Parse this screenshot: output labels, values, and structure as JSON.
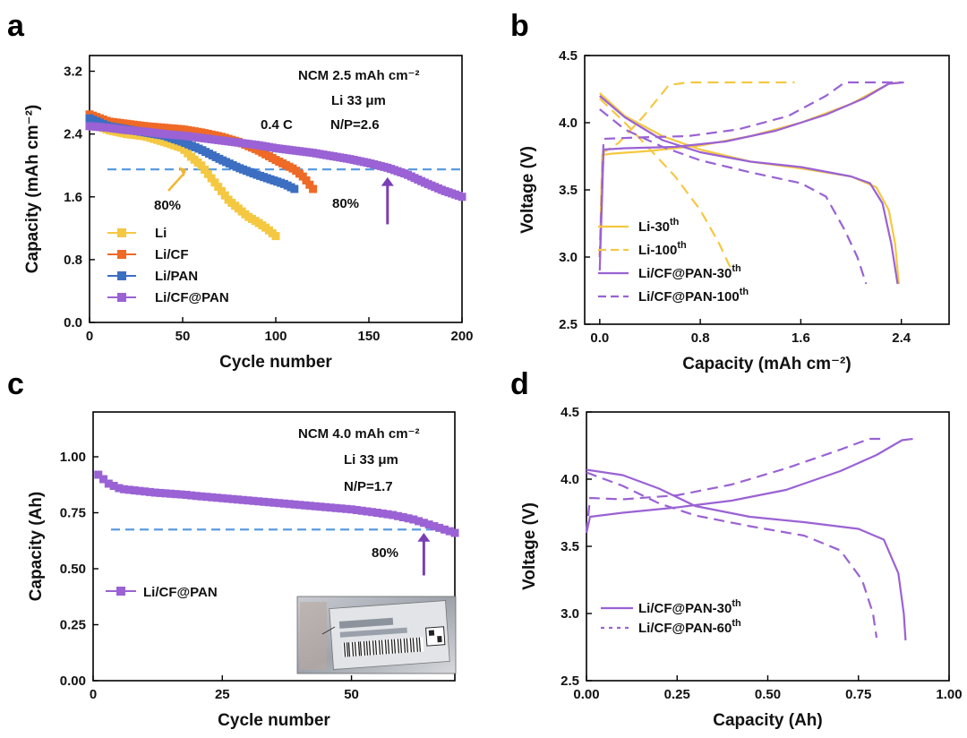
{
  "panels": {
    "a": "a",
    "b": "b",
    "c": "c",
    "d": "d"
  },
  "colors": {
    "li": "#F5C842",
    "li_cf": "#EE6A26",
    "li_pan": "#3C6FC2",
    "li_cf_pan": "#9A62D4",
    "ref_dash": "#5B9BE0",
    "arrow": "#7A3FB5",
    "orange_arrow": "#F2B532"
  },
  "icons": {
    "pouch_cell": "pouch-cell-photo-icon"
  },
  "chart_data": [
    {
      "id": "a",
      "type": "scatter",
      "xlabel": "Cycle number",
      "ylabel": "Capacity (mAh cm⁻²)",
      "xlim": [
        0,
        200
      ],
      "ylim": [
        0,
        3.4
      ],
      "xticks": [
        0,
        50,
        100,
        150,
        200
      ],
      "yticks": [
        0.0,
        0.8,
        1.6,
        2.4,
        3.2
      ],
      "xtick_labels": [
        "0",
        "50",
        "100",
        "150",
        "200"
      ],
      "ytick_labels": [
        "0.0",
        "0.8",
        "1.6",
        "2.4",
        "3.2"
      ],
      "annotations": [
        "NCM 2.5 mAh cm⁻²",
        "Li 33 μm",
        "N/P=2.6",
        "0.4 C",
        "80%",
        "80%"
      ],
      "reference_line": {
        "y": 1.95,
        "x": [
          0,
          200
        ]
      },
      "arrows": [
        {
          "x": 160,
          "y_from": 1.25,
          "y_to": 1.85
        },
        {
          "x": 52,
          "y_from": 1.75,
          "y_to": 1.95
        }
      ],
      "legend": [
        "Li",
        "Li/CF",
        "Li/PAN",
        "Li/CF@PAN"
      ],
      "series": [
        {
          "name": "Li",
          "color": "#F5C842",
          "x": [
            0,
            10,
            20,
            30,
            40,
            50,
            55,
            60,
            65,
            70,
            75,
            80,
            85,
            90,
            95,
            100
          ],
          "y": [
            2.55,
            2.45,
            2.4,
            2.37,
            2.3,
            2.22,
            2.1,
            2.0,
            1.85,
            1.7,
            1.55,
            1.45,
            1.35,
            1.28,
            1.2,
            1.1
          ]
        },
        {
          "name": "Li/CF",
          "color": "#EE6A26",
          "x": [
            0,
            10,
            20,
            30,
            40,
            50,
            60,
            70,
            80,
            90,
            100,
            110,
            115,
            120
          ],
          "y": [
            2.65,
            2.56,
            2.53,
            2.5,
            2.48,
            2.46,
            2.42,
            2.37,
            2.3,
            2.2,
            2.07,
            1.95,
            1.85,
            1.7
          ]
        },
        {
          "name": "Li/PAN",
          "color": "#3C6FC2",
          "x": [
            0,
            10,
            20,
            30,
            40,
            50,
            60,
            70,
            80,
            90,
            100,
            105,
            110
          ],
          "y": [
            2.6,
            2.5,
            2.46,
            2.42,
            2.38,
            2.3,
            2.2,
            2.08,
            1.97,
            1.88,
            1.8,
            1.76,
            1.7
          ]
        },
        {
          "name": "Li/CF@PAN",
          "color": "#9A62D4",
          "x": [
            0,
            10,
            20,
            30,
            40,
            50,
            60,
            70,
            80,
            90,
            100,
            110,
            120,
            130,
            140,
            150,
            160,
            170,
            180,
            190,
            200
          ],
          "y": [
            2.5,
            2.48,
            2.45,
            2.43,
            2.4,
            2.38,
            2.35,
            2.32,
            2.29,
            2.26,
            2.22,
            2.19,
            2.16,
            2.12,
            2.08,
            2.03,
            1.97,
            1.89,
            1.78,
            1.68,
            1.6
          ]
        }
      ]
    },
    {
      "id": "b",
      "type": "line",
      "xlabel": "Capacity (mAh cm⁻²)",
      "ylabel": "Voltage (V)",
      "xlim": [
        -0.12,
        2.78
      ],
      "ylim": [
        2.5,
        4.5
      ],
      "xticks": [
        0.0,
        0.8,
        1.6,
        2.4
      ],
      "yticks": [
        2.5,
        3.0,
        3.5,
        4.0,
        4.5
      ],
      "xtick_labels": [
        "0.0",
        "0.8",
        "1.6",
        "2.4"
      ],
      "ytick_labels": [
        "2.5",
        "3.0",
        "3.5",
        "4.0",
        "4.5"
      ],
      "legend": [
        "Li-30th",
        "Li-100th",
        "Li/CF@PAN-30th",
        "Li/CF@PAN-100th"
      ],
      "series": [
        {
          "name": "Li-30th (charge)",
          "color": "#F5C842",
          "dash": false,
          "x": [
            0.0,
            0.02,
            0.1,
            0.4,
            0.8,
            1.2,
            1.6,
            2.0,
            2.3,
            2.4
          ],
          "y": [
            3.0,
            3.76,
            3.77,
            3.79,
            3.83,
            3.9,
            4.0,
            4.14,
            4.29,
            4.3
          ]
        },
        {
          "name": "Li-30th (discharge)",
          "color": "#F5C842",
          "dash": false,
          "x": [
            0.0,
            0.2,
            0.5,
            0.8,
            1.2,
            1.6,
            2.0,
            2.2,
            2.3,
            2.35,
            2.38
          ],
          "y": [
            4.22,
            4.05,
            3.9,
            3.8,
            3.71,
            3.66,
            3.6,
            3.52,
            3.35,
            3.1,
            2.8
          ]
        },
        {
          "name": "Li-100th (charge)",
          "color": "#F5C842",
          "dash": true,
          "x": [
            0.0,
            0.03,
            0.15,
            0.35,
            0.55,
            0.7,
            1.2,
            1.55
          ],
          "y": [
            3.0,
            3.78,
            3.85,
            4.05,
            4.28,
            4.3,
            4.3,
            4.3
          ]
        },
        {
          "name": "Li-100th (discharge)",
          "color": "#F5C842",
          "dash": true,
          "x": [
            0.0,
            0.2,
            0.4,
            0.6,
            0.8,
            0.95,
            1.05
          ],
          "y": [
            4.18,
            4.0,
            3.8,
            3.6,
            3.35,
            3.1,
            2.9
          ]
        },
        {
          "name": "Li/CF@PAN-30th (charge)",
          "color": "#9A62D4",
          "dash": false,
          "x": [
            0.0,
            0.03,
            0.2,
            0.6,
            1.0,
            1.4,
            1.8,
            2.1,
            2.3,
            2.42
          ],
          "y": [
            2.9,
            3.8,
            3.81,
            3.82,
            3.86,
            3.94,
            4.06,
            4.18,
            4.29,
            4.3
          ]
        },
        {
          "name": "Li/CF@PAN-30th (discharge)",
          "color": "#9A62D4",
          "dash": false,
          "x": [
            0.0,
            0.2,
            0.5,
            0.8,
            1.2,
            1.6,
            2.0,
            2.15,
            2.25,
            2.32,
            2.37
          ],
          "y": [
            4.2,
            4.04,
            3.87,
            3.78,
            3.71,
            3.67,
            3.6,
            3.55,
            3.4,
            3.1,
            2.8
          ]
        },
        {
          "name": "Li/CF@PAN-100th (charge)",
          "color": "#9A62D4",
          "dash": true,
          "x": [
            0.0,
            0.03,
            0.3,
            0.7,
            1.1,
            1.5,
            1.8,
            1.95,
            2.2,
            2.4
          ],
          "y": [
            3.0,
            3.88,
            3.89,
            3.9,
            3.95,
            4.05,
            4.2,
            4.3,
            4.3,
            4.3
          ]
        },
        {
          "name": "Li/CF@PAN-100th (discharge)",
          "color": "#9A62D4",
          "dash": true,
          "x": [
            0.0,
            0.2,
            0.5,
            0.8,
            1.2,
            1.6,
            1.8,
            1.95,
            2.05,
            2.12
          ],
          "y": [
            4.1,
            3.95,
            3.82,
            3.72,
            3.63,
            3.55,
            3.45,
            3.2,
            3.0,
            2.8
          ]
        }
      ]
    },
    {
      "id": "c",
      "type": "scatter",
      "xlabel": "Cycle number",
      "ylabel": "Capacity (Ah)",
      "xlim": [
        0,
        70
      ],
      "ylim": [
        0,
        1.2
      ],
      "xticks": [
        0,
        25,
        50
      ],
      "yticks": [
        0.0,
        0.25,
        0.5,
        0.75,
        1.0
      ],
      "xtick_labels": [
        "0",
        "25",
        "50"
      ],
      "ytick_labels": [
        "0.00",
        "0.25",
        "0.50",
        "0.75",
        "1.00"
      ],
      "annotations": [
        "NCM 4.0 mAh cm⁻²",
        "Li 33 μm",
        "N/P=1.7",
        "80%"
      ],
      "reference_line": {
        "y": 0.675,
        "x": [
          0,
          66
        ]
      },
      "arrows": [
        {
          "x": 64,
          "y_from": 0.47,
          "y_to": 0.66
        }
      ],
      "legend": [
        "Li/CF@PAN"
      ],
      "series": [
        {
          "name": "Li/CF@PAN",
          "color": "#9A62D4",
          "x": [
            1,
            2,
            3,
            4,
            5,
            6,
            8,
            10,
            12,
            15,
            18,
            20,
            25,
            30,
            35,
            40,
            45,
            50,
            55,
            58,
            60,
            62,
            64,
            66,
            68,
            70
          ],
          "y": [
            0.92,
            0.9,
            0.88,
            0.87,
            0.86,
            0.855,
            0.85,
            0.845,
            0.84,
            0.835,
            0.83,
            0.825,
            0.815,
            0.805,
            0.795,
            0.785,
            0.775,
            0.765,
            0.75,
            0.74,
            0.73,
            0.72,
            0.705,
            0.69,
            0.675,
            0.66
          ]
        }
      ]
    },
    {
      "id": "d",
      "type": "line",
      "xlabel": "Capacity (Ah)",
      "ylabel": "Voltage (V)",
      "xlim": [
        0,
        1.0
      ],
      "ylim": [
        2.5,
        4.5
      ],
      "xticks": [
        0.0,
        0.25,
        0.5,
        0.75,
        1.0
      ],
      "yticks": [
        2.5,
        3.0,
        3.5,
        4.0,
        4.5
      ],
      "xtick_labels": [
        "0.00",
        "0.25",
        "0.50",
        "0.75",
        "1.00"
      ],
      "ytick_labels": [
        "2.5",
        "3.0",
        "3.5",
        "4.0",
        "4.5"
      ],
      "legend": [
        "Li/CF@PAN-30th",
        "Li/CF@PAN-60th"
      ],
      "series": [
        {
          "name": "Li/CF@PAN-30th (charge)",
          "color": "#9A62D4",
          "dash": false,
          "x": [
            0.0,
            0.01,
            0.1,
            0.25,
            0.4,
            0.55,
            0.7,
            0.8,
            0.87,
            0.9
          ],
          "y": [
            3.6,
            3.72,
            3.75,
            3.79,
            3.84,
            3.92,
            4.06,
            4.18,
            4.29,
            4.3
          ]
        },
        {
          "name": "Li/CF@PAN-30th (discharge)",
          "color": "#9A62D4",
          "dash": false,
          "x": [
            0.0,
            0.1,
            0.2,
            0.3,
            0.45,
            0.6,
            0.75,
            0.82,
            0.86,
            0.875,
            0.88
          ],
          "y": [
            4.07,
            4.03,
            3.93,
            3.8,
            3.72,
            3.68,
            3.63,
            3.55,
            3.3,
            3.0,
            2.8
          ]
        },
        {
          "name": "Li/CF@PAN-60th (charge)",
          "color": "#9A62D4",
          "dash": true,
          "x": [
            0.0,
            0.01,
            0.1,
            0.25,
            0.4,
            0.55,
            0.7,
            0.78,
            0.82
          ],
          "y": [
            3.6,
            3.86,
            3.85,
            3.88,
            3.96,
            4.08,
            4.22,
            4.3,
            4.3
          ]
        },
        {
          "name": "Li/CF@PAN-60th (discharge)",
          "color": "#9A62D4",
          "dash": true,
          "x": [
            0.0,
            0.1,
            0.2,
            0.3,
            0.45,
            0.6,
            0.7,
            0.76,
            0.79,
            0.8
          ],
          "y": [
            4.05,
            3.95,
            3.82,
            3.73,
            3.65,
            3.58,
            3.47,
            3.25,
            3.0,
            2.82
          ]
        }
      ]
    }
  ]
}
